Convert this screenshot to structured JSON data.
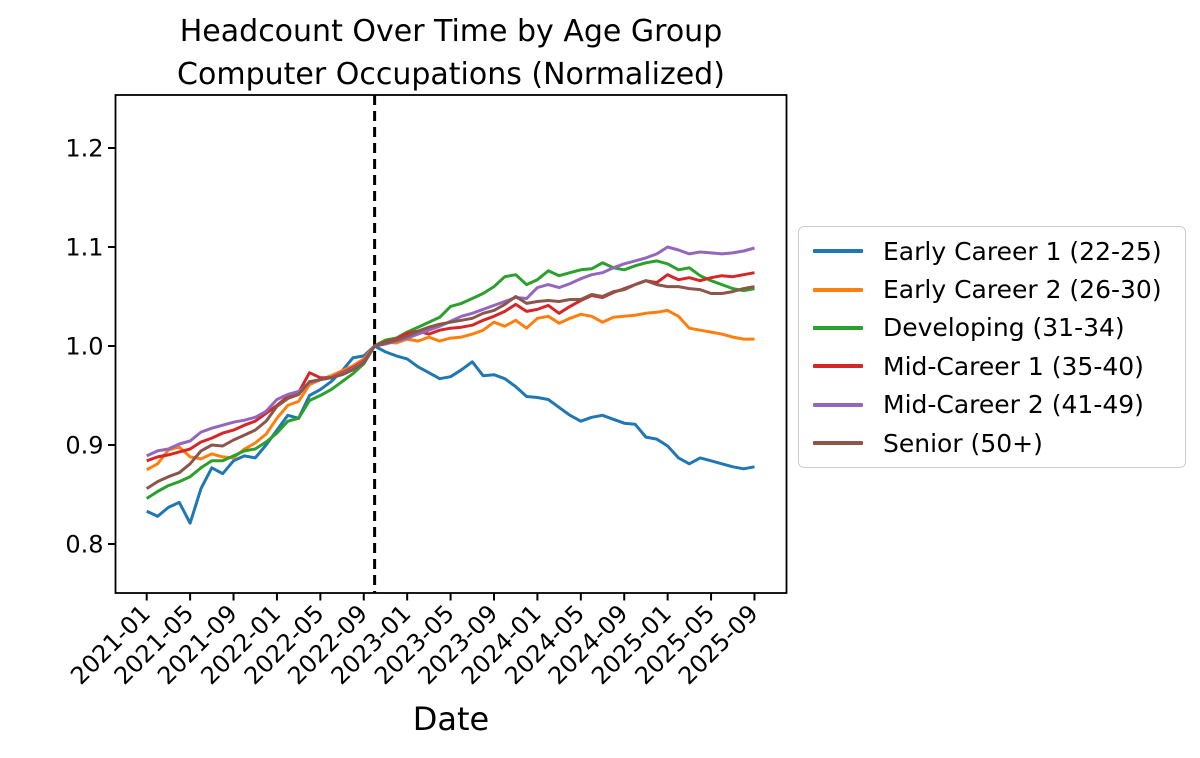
{
  "figure": {
    "title_line1": "Headcount Over Time by Age Group",
    "title_line2": "Computer Occupations (Normalized)",
    "xlabel": "Date"
  },
  "chart_data": {
    "type": "line",
    "title": "Headcount Over Time by Age Group\nComputer Occupations (Normalized)",
    "xlabel": "Date",
    "ylabel": "",
    "grid": false,
    "legend_position": "center-right-outside",
    "ylim": [
      0.744,
      1.253
    ],
    "y_ticks": [
      0.8,
      0.9,
      1.0,
      1.1,
      1.2
    ],
    "y_tick_labels": [
      "0.8",
      "0.9",
      "1.0",
      "1.1",
      "1.2"
    ],
    "x_tick_labels": [
      "2021-01",
      "2021-05",
      "2021-09",
      "2022-01",
      "2022-05",
      "2022-09",
      "2023-01",
      "2023-05",
      "2023-09",
      "2024-01",
      "2024-05",
      "2024-09",
      "2025-01",
      "2025-05",
      "2025-09"
    ],
    "vline_month": "2022-10",
    "vline_style": "dashed",
    "vline_color": "#000000",
    "months": [
      "2021-01",
      "2021-02",
      "2021-03",
      "2021-04",
      "2021-05",
      "2021-06",
      "2021-07",
      "2021-08",
      "2021-09",
      "2021-10",
      "2021-11",
      "2021-12",
      "2022-01",
      "2022-02",
      "2022-03",
      "2022-04",
      "2022-05",
      "2022-06",
      "2022-07",
      "2022-08",
      "2022-09",
      "2022-10",
      "2022-11",
      "2022-12",
      "2023-01",
      "2023-02",
      "2023-03",
      "2023-04",
      "2023-05",
      "2023-06",
      "2023-07",
      "2023-08",
      "2023-09",
      "2023-10",
      "2023-11",
      "2023-12",
      "2024-01",
      "2024-02",
      "2024-03",
      "2024-04",
      "2024-05",
      "2024-06",
      "2024-07",
      "2024-08",
      "2024-09",
      "2024-10",
      "2024-11",
      "2024-12",
      "2025-01",
      "2025-02",
      "2025-03",
      "2025-04",
      "2025-05",
      "2025-06",
      "2025-07",
      "2025-08",
      "2025-09"
    ],
    "series": [
      {
        "name": "Early Career 1 (22-25)",
        "color": "#1f77b4",
        "values": [
          0.833,
          0.828,
          0.837,
          0.842,
          0.821,
          0.856,
          0.877,
          0.871,
          0.884,
          0.889,
          0.887,
          0.9,
          0.915,
          0.93,
          0.927,
          0.95,
          0.956,
          0.964,
          0.975,
          0.988,
          0.99,
          1.0,
          0.994,
          0.99,
          0.987,
          0.979,
          0.973,
          0.967,
          0.969,
          0.976,
          0.984,
          0.97,
          0.971,
          0.967,
          0.959,
          0.949,
          0.948,
          0.946,
          0.938,
          0.93,
          0.924,
          0.928,
          0.93,
          0.926,
          0.922,
          0.921,
          0.908,
          0.906,
          0.899,
          0.887,
          0.881,
          0.887,
          0.884,
          0.881,
          0.878,
          0.876,
          0.878
        ]
      },
      {
        "name": "Early Career 2 (26-30)",
        "color": "#ff7f0e",
        "values": [
          0.875,
          0.881,
          0.895,
          0.898,
          0.888,
          0.886,
          0.891,
          0.888,
          0.887,
          0.896,
          0.902,
          0.911,
          0.927,
          0.94,
          0.944,
          0.961,
          0.966,
          0.97,
          0.975,
          0.98,
          0.987,
          1.0,
          1.004,
          1.003,
          1.007,
          1.005,
          1.009,
          1.005,
          1.008,
          1.009,
          1.012,
          1.016,
          1.024,
          1.02,
          1.026,
          1.018,
          1.028,
          1.03,
          1.023,
          1.028,
          1.032,
          1.03,
          1.024,
          1.029,
          1.03,
          1.031,
          1.033,
          1.034,
          1.036,
          1.03,
          1.018,
          1.016,
          1.014,
          1.012,
          1.009,
          1.007,
          1.007
        ]
      },
      {
        "name": "Developing (31-34)",
        "color": "#2ca02c",
        "values": [
          0.846,
          0.853,
          0.859,
          0.863,
          0.868,
          0.877,
          0.884,
          0.884,
          0.889,
          0.894,
          0.896,
          0.903,
          0.912,
          0.924,
          0.927,
          0.945,
          0.95,
          0.956,
          0.964,
          0.972,
          0.982,
          1.0,
          1.006,
          1.008,
          1.014,
          1.019,
          1.024,
          1.029,
          1.04,
          1.043,
          1.048,
          1.053,
          1.06,
          1.07,
          1.072,
          1.062,
          1.067,
          1.076,
          1.071,
          1.074,
          1.077,
          1.078,
          1.084,
          1.079,
          1.077,
          1.081,
          1.084,
          1.086,
          1.083,
          1.077,
          1.079,
          1.071,
          1.066,
          1.062,
          1.058,
          1.056,
          1.058
        ]
      },
      {
        "name": "Mid-Career 1 (35-40)",
        "color": "#d62728",
        "values": [
          0.884,
          0.888,
          0.89,
          0.893,
          0.896,
          0.903,
          0.907,
          0.912,
          0.915,
          0.92,
          0.924,
          0.932,
          0.94,
          0.949,
          0.953,
          0.973,
          0.968,
          0.968,
          0.973,
          0.978,
          0.985,
          1.0,
          1.004,
          1.007,
          1.013,
          1.015,
          1.012,
          1.016,
          1.018,
          1.019,
          1.021,
          1.026,
          1.03,
          1.035,
          1.042,
          1.035,
          1.037,
          1.041,
          1.033,
          1.04,
          1.046,
          1.051,
          1.049,
          1.054,
          1.058,
          1.062,
          1.066,
          1.064,
          1.072,
          1.067,
          1.069,
          1.066,
          1.069,
          1.071,
          1.07,
          1.072,
          1.074
        ]
      },
      {
        "name": "Mid-Career 2 (41-49)",
        "color": "#9467bd",
        "values": [
          0.889,
          0.894,
          0.896,
          0.901,
          0.904,
          0.913,
          0.917,
          0.92,
          0.923,
          0.925,
          0.928,
          0.934,
          0.946,
          0.951,
          0.954,
          0.963,
          0.966,
          0.968,
          0.972,
          0.977,
          0.984,
          1.0,
          1.002,
          1.005,
          1.008,
          1.012,
          1.016,
          1.02,
          1.025,
          1.03,
          1.033,
          1.037,
          1.041,
          1.045,
          1.049,
          1.048,
          1.059,
          1.062,
          1.059,
          1.063,
          1.068,
          1.072,
          1.074,
          1.079,
          1.083,
          1.086,
          1.089,
          1.093,
          1.1,
          1.097,
          1.093,
          1.095,
          1.094,
          1.093,
          1.094,
          1.096,
          1.099
        ]
      },
      {
        "name": "Senior (50+)",
        "color": "#8c564b",
        "values": [
          0.856,
          0.863,
          0.868,
          0.872,
          0.881,
          0.894,
          0.9,
          0.899,
          0.905,
          0.91,
          0.915,
          0.924,
          0.939,
          0.947,
          0.951,
          0.964,
          0.966,
          0.968,
          0.971,
          0.976,
          0.983,
          1.0,
          1.003,
          1.006,
          1.01,
          1.015,
          1.019,
          1.022,
          1.024,
          1.026,
          1.028,
          1.033,
          1.036,
          1.042,
          1.05,
          1.043,
          1.045,
          1.046,
          1.045,
          1.047,
          1.047,
          1.052,
          1.05,
          1.055,
          1.057,
          1.062,
          1.066,
          1.062,
          1.06,
          1.06,
          1.058,
          1.057,
          1.053,
          1.053,
          1.055,
          1.058,
          1.06
        ]
      }
    ]
  }
}
